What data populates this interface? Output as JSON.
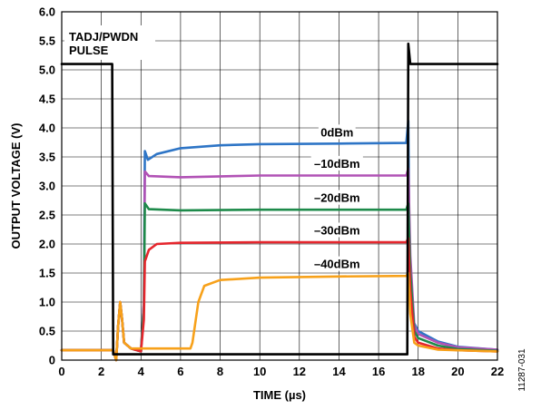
{
  "chart_data": {
    "type": "line",
    "xlabel": "TIME (µs)",
    "ylabel": "OUTPUT VOLTAGE (V)",
    "xlim": [
      0,
      22
    ],
    "ylim": [
      0,
      6.0
    ],
    "xticks": [
      0,
      2,
      4,
      6,
      8,
      10,
      12,
      14,
      16,
      18,
      20,
      22
    ],
    "yticks": [
      "0",
      "0.5",
      "1.0",
      "1.5",
      "2.0",
      "2.5",
      "3.0",
      "3.5",
      "4.0",
      "4.5",
      "5.0",
      "5.5",
      "6.0"
    ],
    "grid": true,
    "annotation": {
      "line1": "TADJ/PWDN",
      "line2": "PULSE"
    },
    "figure_id": "11287-031",
    "series": [
      {
        "name": "0dBm",
        "color": "#2e75c6",
        "points": [
          [
            0,
            0.17
          ],
          [
            2.6,
            0.17
          ],
          [
            2.75,
            0.0
          ],
          [
            2.85,
            0.6
          ],
          [
            2.95,
            1.0
          ],
          [
            3.05,
            0.7
          ],
          [
            3.15,
            0.3
          ],
          [
            3.5,
            0.2
          ],
          [
            4.0,
            0.15
          ],
          [
            4.15,
            1.0
          ],
          [
            4.2,
            3.6
          ],
          [
            4.35,
            3.45
          ],
          [
            4.8,
            3.55
          ],
          [
            6,
            3.65
          ],
          [
            8,
            3.7
          ],
          [
            10,
            3.72
          ],
          [
            14,
            3.73
          ],
          [
            17.4,
            3.74
          ],
          [
            17.5,
            4.12
          ],
          [
            17.55,
            2.0
          ],
          [
            17.7,
            0.7
          ],
          [
            18,
            0.5
          ],
          [
            19,
            0.32
          ],
          [
            20,
            0.23
          ],
          [
            22,
            0.18
          ]
        ]
      },
      {
        "name": "–10dBm",
        "color": "#b152b5",
        "points": [
          [
            0,
            0.17
          ],
          [
            2.6,
            0.17
          ],
          [
            2.75,
            0.0
          ],
          [
            2.85,
            0.6
          ],
          [
            2.95,
            1.0
          ],
          [
            3.05,
            0.7
          ],
          [
            3.15,
            0.3
          ],
          [
            3.5,
            0.2
          ],
          [
            4.0,
            0.15
          ],
          [
            4.15,
            1.0
          ],
          [
            4.2,
            3.25
          ],
          [
            4.4,
            3.17
          ],
          [
            6,
            3.15
          ],
          [
            10,
            3.18
          ],
          [
            17.4,
            3.18
          ],
          [
            17.5,
            3.3
          ],
          [
            17.6,
            1.8
          ],
          [
            17.8,
            0.6
          ],
          [
            18,
            0.45
          ],
          [
            19,
            0.3
          ],
          [
            20,
            0.22
          ],
          [
            22,
            0.18
          ]
        ]
      },
      {
        "name": "–20dBm",
        "color": "#1d8a4a",
        "points": [
          [
            0,
            0.17
          ],
          [
            2.6,
            0.17
          ],
          [
            2.75,
            0.0
          ],
          [
            2.85,
            0.6
          ],
          [
            2.95,
            1.0
          ],
          [
            3.05,
            0.7
          ],
          [
            3.15,
            0.3
          ],
          [
            3.5,
            0.2
          ],
          [
            4.0,
            0.15
          ],
          [
            4.15,
            0.9
          ],
          [
            4.2,
            2.7
          ],
          [
            4.4,
            2.6
          ],
          [
            6,
            2.58
          ],
          [
            10,
            2.59
          ],
          [
            17.4,
            2.59
          ],
          [
            17.5,
            2.7
          ],
          [
            17.6,
            1.5
          ],
          [
            17.8,
            0.5
          ],
          [
            18,
            0.38
          ],
          [
            19,
            0.25
          ],
          [
            20,
            0.19
          ],
          [
            22,
            0.16
          ]
        ]
      },
      {
        "name": "–30dBm",
        "color": "#e5262d",
        "points": [
          [
            0,
            0.17
          ],
          [
            2.6,
            0.17
          ],
          [
            2.75,
            0.0
          ],
          [
            2.85,
            0.6
          ],
          [
            2.95,
            1.0
          ],
          [
            3.05,
            0.7
          ],
          [
            3.15,
            0.3
          ],
          [
            3.5,
            0.2
          ],
          [
            4.0,
            0.15
          ],
          [
            4.15,
            0.7
          ],
          [
            4.2,
            1.7
          ],
          [
            4.4,
            1.9
          ],
          [
            4.8,
            2.0
          ],
          [
            6,
            2.02
          ],
          [
            10,
            2.03
          ],
          [
            17.4,
            2.03
          ],
          [
            17.5,
            2.1
          ],
          [
            17.6,
            1.2
          ],
          [
            17.8,
            0.4
          ],
          [
            18,
            0.3
          ],
          [
            19,
            0.2
          ],
          [
            20,
            0.17
          ],
          [
            22,
            0.15
          ]
        ]
      },
      {
        "name": "–40dBm",
        "color": "#f7a11a",
        "points": [
          [
            0,
            0.17
          ],
          [
            2.6,
            0.17
          ],
          [
            2.75,
            0.0
          ],
          [
            2.85,
            0.6
          ],
          [
            2.95,
            1.0
          ],
          [
            3.05,
            0.7
          ],
          [
            3.15,
            0.3
          ],
          [
            3.5,
            0.2
          ],
          [
            6.5,
            0.2
          ],
          [
            6.6,
            0.3
          ],
          [
            6.9,
            1.0
          ],
          [
            7.2,
            1.28
          ],
          [
            8,
            1.38
          ],
          [
            10,
            1.42
          ],
          [
            14,
            1.44
          ],
          [
            17.4,
            1.45
          ],
          [
            17.5,
            1.5
          ],
          [
            17.6,
            0.8
          ],
          [
            17.8,
            0.3
          ],
          [
            18,
            0.25
          ],
          [
            19,
            0.18
          ],
          [
            22,
            0.15
          ]
        ]
      },
      {
        "name": "",
        "color": "#000000",
        "points": [
          [
            0,
            5.1
          ],
          [
            2.55,
            5.1
          ],
          [
            2.6,
            0.1
          ],
          [
            4,
            0.1
          ],
          [
            10,
            0.1
          ],
          [
            17.45,
            0.1
          ],
          [
            17.5,
            5.45
          ],
          [
            17.6,
            5.1
          ],
          [
            22,
            5.1
          ]
        ]
      }
    ],
    "series_label_positions": [
      {
        "text": "0dBm",
        "x": 13.9,
        "y": 3.87
      },
      {
        "text": "–10dBm",
        "x": 13.9,
        "y": 3.33
      },
      {
        "text": "–20dBm",
        "x": 13.9,
        "y": 2.74
      },
      {
        "text": "–30dBm",
        "x": 13.9,
        "y": 2.18
      },
      {
        "text": "–40dBm",
        "x": 13.9,
        "y": 1.6
      }
    ]
  }
}
